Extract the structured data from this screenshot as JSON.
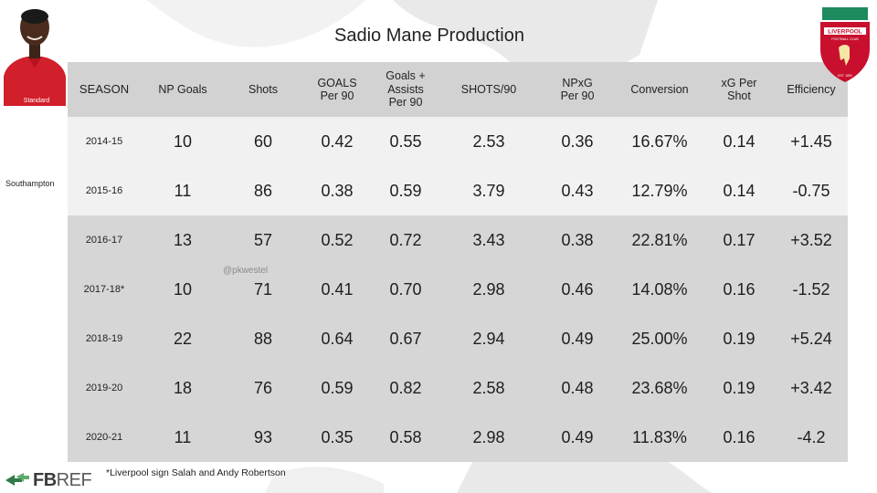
{
  "title": "Sadio Mane Production",
  "side_label": "Southampton",
  "watermark": "@pkwestel",
  "footnote": "*Liverpool sign Salah and Andy Robertson",
  "logo": {
    "text_fb": "FB",
    "text_ref": "REF"
  },
  "crest": {
    "name": "LIVERPOOL",
    "sub": "FOOTBALL CLUB",
    "motto": "YOU'LL NEVER WALK ALONE",
    "est": "EST. 1892",
    "color": "#c8102e"
  },
  "player_shirt": {
    "sponsor": "Standard",
    "color": "#d11f2b"
  },
  "colors": {
    "header_bg": "#d2d2d2",
    "row_light": "#f1f1f1",
    "row_dark": "#d6d6d6"
  },
  "chart_data": {
    "type": "table",
    "title": "Sadio Mane Production",
    "columns": [
      "SEASON",
      "NP Goals",
      "Shots",
      "GOALS Per 90",
      "Goals + Assists Per 90",
      "SHOTS/90",
      "NPxG Per 90",
      "Conversion",
      "xG Per Shot",
      "Efficiency"
    ],
    "rows": [
      {
        "season": "2014-15",
        "np_goals": "10",
        "shots": "60",
        "goals_p90": "0.42",
        "ga_p90": "0.55",
        "shots_p90": "2.53",
        "npxg_p90": "0.36",
        "conversion": "16.67%",
        "xg_per_shot": "0.14",
        "efficiency": "+1.45",
        "club": "Southampton"
      },
      {
        "season": "2015-16",
        "np_goals": "11",
        "shots": "86",
        "goals_p90": "0.38",
        "ga_p90": "0.59",
        "shots_p90": "3.79",
        "npxg_p90": "0.43",
        "conversion": "12.79%",
        "xg_per_shot": "0.14",
        "efficiency": "-0.75",
        "club": "Southampton"
      },
      {
        "season": "2016-17",
        "np_goals": "13",
        "shots": "57",
        "goals_p90": "0.52",
        "ga_p90": "0.72",
        "shots_p90": "3.43",
        "npxg_p90": "0.38",
        "conversion": "22.81%",
        "xg_per_shot": "0.17",
        "efficiency": "+3.52",
        "club": "Liverpool"
      },
      {
        "season": "2017-18*",
        "np_goals": "10",
        "shots": "71",
        "goals_p90": "0.41",
        "ga_p90": "0.70",
        "shots_p90": "2.98",
        "npxg_p90": "0.46",
        "conversion": "14.08%",
        "xg_per_shot": "0.16",
        "efficiency": "-1.52",
        "club": "Liverpool"
      },
      {
        "season": "2018-19",
        "np_goals": "22",
        "shots": "88",
        "goals_p90": "0.64",
        "ga_p90": "0.67",
        "shots_p90": "2.94",
        "npxg_p90": "0.49",
        "conversion": "25.00%",
        "xg_per_shot": "0.19",
        "efficiency": "+5.24",
        "club": "Liverpool"
      },
      {
        "season": "2019-20",
        "np_goals": "18",
        "shots": "76",
        "goals_p90": "0.59",
        "ga_p90": "0.82",
        "shots_p90": "2.58",
        "npxg_p90": "0.48",
        "conversion": "23.68%",
        "xg_per_shot": "0.19",
        "efficiency": "+3.42",
        "club": "Liverpool"
      },
      {
        "season": "2020-21",
        "np_goals": "11",
        "shots": "93",
        "goals_p90": "0.35",
        "ga_p90": "0.58",
        "shots_p90": "2.98",
        "npxg_p90": "0.49",
        "conversion": "11.83%",
        "xg_per_shot": "0.16",
        "efficiency": "-4.2",
        "club": "Liverpool"
      }
    ]
  }
}
